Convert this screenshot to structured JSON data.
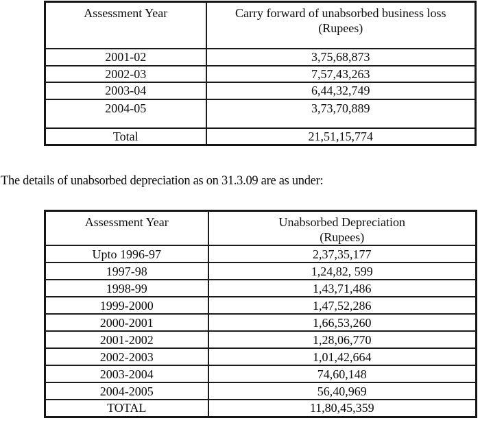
{
  "page": {
    "middle_text": "The details of unabsorbed depreciation as on 31.3.09 are as under:"
  },
  "table1": {
    "headers": {
      "col1": "Assessment Year",
      "col2_line1": "Carry forward of unabsorbed business loss",
      "col2_line2": "(Rupees)"
    },
    "rows": [
      {
        "year": "2001-02",
        "amount": "3,75,68,873"
      },
      {
        "year": "2002-03",
        "amount": "7,57,43,263"
      },
      {
        "year": "2003-04",
        "amount": "6,44,32,749"
      },
      {
        "year": "2004-05",
        "amount": "3,73,70,889"
      },
      {
        "year": "Total",
        "amount": "21,51,15,774"
      }
    ]
  },
  "table2": {
    "headers": {
      "col1": "Assessment Year",
      "col2_line1": "Unabsorbed Depreciation",
      "col2_line2": "(Rupees)"
    },
    "rows": [
      {
        "year": "Upto 1996-97",
        "amount": "2,37,35,177"
      },
      {
        "year": "1997-98",
        "amount": "1,24,82, 599"
      },
      {
        "year": "1998-99",
        "amount": "1,43,71,486"
      },
      {
        "year": "1999-2000",
        "amount": "1,47,52,286"
      },
      {
        "year": "2000-2001",
        "amount": "1,66,53,260"
      },
      {
        "year": "2001-2002",
        "amount": "1,28,06,770"
      },
      {
        "year": "2002-2003",
        "amount": "1,01,42,664"
      },
      {
        "year": "2003-2004",
        "amount": "74,60,148"
      },
      {
        "year": "2004-2005",
        "amount": "56,40,969"
      },
      {
        "year": "TOTAL",
        "amount": "11,80,45,359"
      }
    ]
  }
}
